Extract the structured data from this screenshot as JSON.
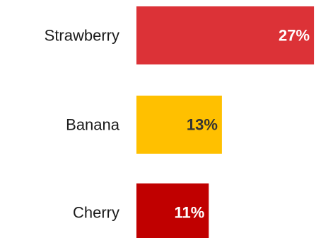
{
  "chart_data": {
    "type": "bar",
    "orientation": "horizontal",
    "categories": [
      "Strawberry",
      "Banana",
      "Cherry"
    ],
    "values": [
      27,
      13,
      11
    ],
    "value_labels": [
      "27%",
      "13%",
      "11%"
    ],
    "colors": [
      "#dc3237",
      "#ffc000",
      "#c00000"
    ],
    "label_colors": [
      "#ffffff",
      "#333333",
      "#ffffff"
    ],
    "title": "",
    "xlabel": "",
    "ylabel": "",
    "unit": "%",
    "grid": false,
    "legend": "none"
  }
}
